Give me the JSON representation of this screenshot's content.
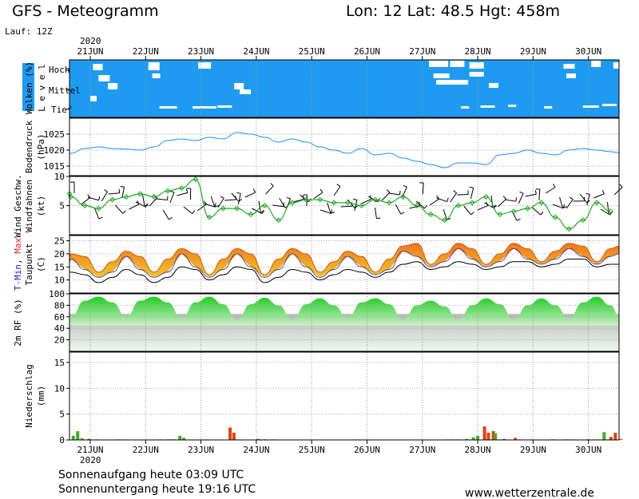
{
  "header": {
    "title": "GFS - Meteogramm",
    "location": "Lon: 12 Lat: 48.5 Hgt: 458m",
    "run": "Lauf: 12Z",
    "year": "2020"
  },
  "footer": {
    "sunrise": "Sonnenaufgang heute 03:09 UTC",
    "sunset": "Sonnenuntergang heute 19:16 UTC",
    "website": "www.wetterzentrale.de"
  },
  "colors": {
    "cloud_blue": "#1e9bf0",
    "pressure_line": "#1e90ff",
    "wind_green": "#22aa22",
    "temp_orange": "#f0781e",
    "temp_yellow": "#f0c828",
    "rh_green": "#22cc22",
    "precip_red": "#dd4411",
    "precip_green": "#44aa22"
  },
  "chart_data": [
    {
      "type": "heatmap",
      "panel": "clouds",
      "ylabel": "Wolken (%)",
      "level_label": "L e v e l",
      "levels": [
        "Hoch",
        "Mittel",
        "Tief"
      ],
      "days": [
        "21JUN",
        "22JUN",
        "23JUN",
        "24JUN",
        "25JUN",
        "26JUN",
        "27JUN",
        "28JUN",
        "29JUN",
        "30JUN"
      ],
      "note": "near-overcast cloud cover at all levels, with clear gaps on 21, 22, 23, 27, 28 and 30 Jun"
    },
    {
      "type": "line",
      "panel": "pressure",
      "ylabel": "Bodendruck",
      "unit": "(hPa)",
      "ylim": [
        1012,
        1030
      ],
      "yticks": [
        1015,
        1020,
        1025
      ],
      "x_days": [
        0,
        0.25,
        0.5,
        0.75,
        1,
        1.25,
        1.5,
        1.75,
        2,
        2.25,
        2.5,
        2.75,
        3,
        3.25,
        3.5,
        3.75,
        4,
        4.25,
        4.5,
        4.75,
        5,
        5.25,
        5.5,
        5.75,
        6,
        6.25,
        6.5,
        6.75,
        7,
        7.25,
        7.5,
        7.75,
        8,
        8.25,
        8.5,
        8.75,
        9,
        9.25,
        9.5,
        9.75
      ],
      "values": [
        1019,
        1020.5,
        1021,
        1020.5,
        1020.3,
        1020,
        1021,
        1023,
        1023.5,
        1023,
        1024,
        1023.5,
        1025.5,
        1025,
        1024,
        1022.5,
        1023.5,
        1022.5,
        1021,
        1020,
        1019,
        1020.5,
        1018.5,
        1019,
        1017.5,
        1016.5,
        1015.5,
        1014.5,
        1016,
        1016,
        1015.5,
        1018.5,
        1019,
        1020,
        1019,
        1018.5,
        1020,
        1020.5,
        1020,
        1019.5
      ]
    },
    {
      "type": "line",
      "panel": "wind",
      "ylabel": "Wind Geschw.",
      "ylabel2": "Windfahnen",
      "unit": "(kt)",
      "ylim": [
        0,
        10
      ],
      "yticks": [
        5,
        10
      ],
      "x_days": [
        0,
        0.25,
        0.5,
        0.75,
        1,
        1.25,
        1.5,
        1.75,
        2,
        2.25,
        2.5,
        2.75,
        3,
        3.25,
        3.5,
        3.75,
        4,
        4.25,
        4.5,
        4.75,
        5,
        5.25,
        5.5,
        5.75,
        6,
        6.25,
        6.5,
        6.75,
        7,
        7.25,
        7.5,
        7.75,
        8,
        8.25,
        8.5,
        8.75,
        9,
        9.25,
        9.5,
        9.75
      ],
      "values": [
        6.5,
        5,
        4.5,
        6,
        6.5,
        7,
        6.5,
        7.5,
        8,
        9.5,
        3,
        4.5,
        4.5,
        3.5,
        5,
        2.5,
        5.5,
        6,
        6,
        5.5,
        5.5,
        5,
        6,
        5.5,
        6.5,
        5,
        3.5,
        2.5,
        5,
        5.5,
        6.5,
        3.5,
        4,
        4.5,
        5.5,
        3,
        1,
        2.5,
        5.5,
        4
      ]
    },
    {
      "type": "area",
      "panel": "temperature",
      "ylabel": [
        "T-Min",
        ", ",
        "Max"
      ],
      "ylabel2": "Taupunkt",
      "unit": "(C)",
      "ylim": [
        5,
        27
      ],
      "yticks": [
        10,
        15,
        20,
        25
      ],
      "x_days": [
        0,
        0.25,
        0.5,
        0.75,
        1,
        1.25,
        1.5,
        1.75,
        2,
        2.25,
        2.5,
        2.75,
        3,
        3.25,
        3.5,
        3.75,
        4,
        4.25,
        4.5,
        4.75,
        5,
        5.25,
        5.5,
        5.75,
        6,
        6.25,
        6.5,
        6.75,
        7,
        7.25,
        7.5,
        7.75,
        8,
        8.25,
        8.5,
        8.75,
        9,
        9.25,
        9.5,
        9.75
      ],
      "tmax": [
        20,
        19,
        13,
        17,
        21,
        19,
        13,
        18,
        22,
        20,
        12,
        18,
        22,
        20,
        12,
        18,
        22,
        20,
        13,
        17,
        21,
        19,
        13,
        18,
        23,
        24,
        16,
        20,
        24,
        22,
        16,
        20,
        24,
        22,
        17,
        21,
        24,
        23,
        17,
        22
      ],
      "tmin": [
        18,
        14,
        11,
        13,
        19,
        14,
        11,
        13,
        20,
        15,
        11,
        14,
        20,
        15,
        11,
        14,
        20,
        15,
        11,
        14,
        19,
        15,
        12,
        14,
        21,
        19,
        15,
        17,
        22,
        18,
        15,
        17,
        22,
        18,
        16,
        18,
        22,
        19,
        16,
        19
      ],
      "dewpoint": [
        13,
        12,
        9,
        11,
        14,
        12,
        9,
        11,
        15,
        14,
        10,
        12,
        15,
        14,
        9,
        11,
        14,
        13,
        10,
        12,
        14,
        13,
        11,
        13,
        16,
        17,
        14,
        15,
        17,
        16,
        14,
        15,
        17,
        17,
        15,
        16,
        18,
        18,
        15,
        16
      ]
    },
    {
      "type": "area",
      "panel": "humidity",
      "ylabel": "2m RF (%)",
      "ylim": [
        0,
        100
      ],
      "yticks": [
        20,
        40,
        60,
        80,
        100
      ],
      "x_days": [
        0,
        0.25,
        0.5,
        0.75,
        1,
        1.25,
        1.5,
        1.75,
        2,
        2.25,
        2.5,
        2.75,
        3,
        3.25,
        3.5,
        3.75,
        4,
        4.25,
        4.5,
        4.75,
        5,
        5.25,
        5.5,
        5.75,
        6,
        6.25,
        6.5,
        6.75,
        7,
        7.25,
        7.5,
        7.75,
        8,
        8.25,
        8.5,
        8.75,
        9,
        9.25,
        9.5,
        9.75
      ],
      "values": [
        60,
        88,
        95,
        85,
        60,
        88,
        95,
        85,
        58,
        85,
        95,
        82,
        55,
        82,
        93,
        80,
        55,
        82,
        92,
        80,
        58,
        85,
        92,
        82,
        55,
        80,
        88,
        78,
        55,
        80,
        92,
        82,
        55,
        80,
        92,
        80,
        58,
        85,
        95,
        80
      ]
    },
    {
      "type": "bar",
      "panel": "precipitation",
      "ylabel": "Niederschlag",
      "unit": "(mm)",
      "ylim": [
        0,
        17
      ],
      "yticks": [
        0,
        5,
        10,
        15
      ],
      "x_days": [
        0.04,
        0.12,
        0.2,
        0.28,
        0.42,
        0.86,
        0.9,
        1.62,
        1.7,
        1.76,
        1.83,
        1.88,
        1.98,
        2.05,
        2.46,
        2.85,
        2.92,
        3.36,
        3.43,
        3.48,
        3.52,
        3.63,
        5.18,
        6.85,
        6.9,
        7.04,
        7.2,
        7.32,
        7.4,
        7.48,
        7.55,
        7.64,
        7.72,
        7.8,
        7.88,
        8.04,
        8.12,
        8.36,
        8.7,
        8.78,
        8.96,
        9.05,
        9.14,
        9.34,
        9.42,
        9.53,
        9.62,
        9.7,
        9.78,
        9.86,
        9.96
      ],
      "series": [
        {
          "color": "green",
          "values": [
            0.8,
            1.7,
            0.3,
            0,
            0,
            0.1,
            0,
            0.1,
            0,
            0,
            0.1,
            0.1,
            0.8,
            0.4,
            0.1,
            0,
            0,
            0,
            0.1,
            0,
            0.1,
            0,
            0.1,
            0.1,
            0,
            0.1,
            0.2,
            0.5,
            0.8,
            0,
            0,
            0,
            1.3,
            0.1,
            0.2,
            0,
            0,
            0.1,
            0,
            0.1,
            0,
            0.1,
            0.1,
            0,
            0.1,
            0.1,
            0.1,
            1.5,
            0.1,
            0,
            0
          ]
        },
        {
          "color": "red",
          "values": [
            0,
            0,
            0,
            0.2,
            0.1,
            0,
            0.1,
            0,
            0.1,
            0.1,
            0,
            0,
            0,
            0,
            0,
            2.4,
            1.4,
            0.2,
            0,
            0.1,
            0,
            0.1,
            0,
            0,
            0.1,
            0,
            0,
            0,
            0,
            2.6,
            1.4,
            1.7,
            0,
            0,
            0,
            0.4,
            0.1,
            0,
            0.1,
            0,
            0.1,
            0,
            0,
            0.1,
            0,
            0,
            0,
            0,
            0.6,
            1.4,
            0.2
          ]
        }
      ]
    }
  ]
}
